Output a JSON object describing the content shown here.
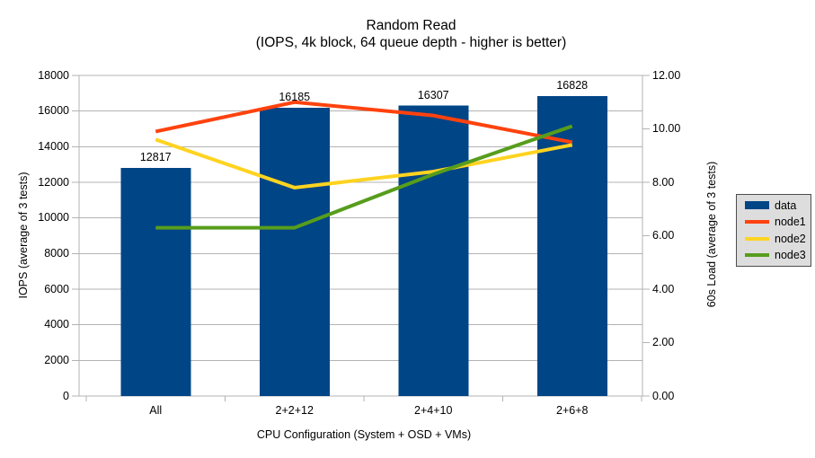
{
  "chart_data": {
    "type": "bar",
    "title": "Random Read",
    "subtitle": "(IOPS, 4k block, 64 queue depth - higher is better)",
    "categories": [
      "All",
      "2+2+12",
      "2+4+10",
      "2+6+8"
    ],
    "series": [
      {
        "name": "data",
        "kind": "bar",
        "axis": "left",
        "color": "#004586",
        "values": [
          12817,
          16185,
          16307,
          16828
        ],
        "value_labels": [
          "12817",
          "16185",
          "16307",
          "16828"
        ]
      },
      {
        "name": "node1",
        "kind": "line",
        "axis": "right",
        "color": "#FF420E",
        "values": [
          9.9,
          11.0,
          10.5,
          9.5
        ]
      },
      {
        "name": "node2",
        "kind": "line",
        "axis": "right",
        "color": "#FFD320",
        "values": [
          9.6,
          7.8,
          8.4,
          9.4
        ]
      },
      {
        "name": "node3",
        "kind": "line",
        "axis": "right",
        "color": "#579D1C",
        "values": [
          6.3,
          6.3,
          8.3,
          10.1
        ]
      }
    ],
    "x_axis": {
      "title": "CPU Configuration (System + OSD + VMs)"
    },
    "left_axis": {
      "title": "IOPS (average of 3 tests)",
      "min": 0,
      "max": 18000,
      "step": 2000
    },
    "right_axis": {
      "title": "60s Load (average of 3 tests)",
      "min": 0,
      "max": 12,
      "step": 2,
      "decimals": 2
    },
    "legend_position": "right",
    "grid": "horizontal"
  },
  "colors": {
    "background": "#ffffff",
    "grid": "#b3b3b3",
    "axis": "#b3b3b3",
    "text": "#000000",
    "legend_bg": "#dddddd",
    "legend_border": "#4d4d4d"
  }
}
